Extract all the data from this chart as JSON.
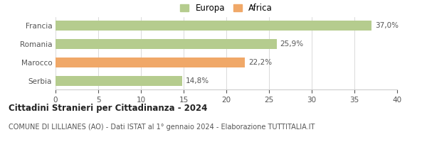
{
  "categories": [
    "Francia",
    "Romania",
    "Marocco",
    "Serbia"
  ],
  "values": [
    37.0,
    25.9,
    22.2,
    14.8
  ],
  "labels": [
    "37,0%",
    "25,9%",
    "22,2%",
    "14,8%"
  ],
  "bar_colors": [
    "#b5cc8e",
    "#b5cc8e",
    "#f0a868",
    "#b5cc8e"
  ],
  "legend": [
    {
      "label": "Europa",
      "color": "#b5cc8e"
    },
    {
      "label": "Africa",
      "color": "#f0a868"
    }
  ],
  "xlim": [
    0,
    40
  ],
  "xticks": [
    0,
    5,
    10,
    15,
    20,
    25,
    30,
    35,
    40
  ],
  "title": "Cittadini Stranieri per Cittadinanza - 2024",
  "subtitle": "COMUNE DI LILLIANES (AO) - Dati ISTAT al 1° gennaio 2024 - Elaborazione TUTTITALIA.IT",
  "background_color": "#ffffff",
  "bar_edge_color": "none",
  "grid_color": "#cccccc",
  "title_fontsize": 8.5,
  "subtitle_fontsize": 7.0,
  "label_fontsize": 7.5,
  "tick_fontsize": 7.5,
  "legend_fontsize": 8.5
}
